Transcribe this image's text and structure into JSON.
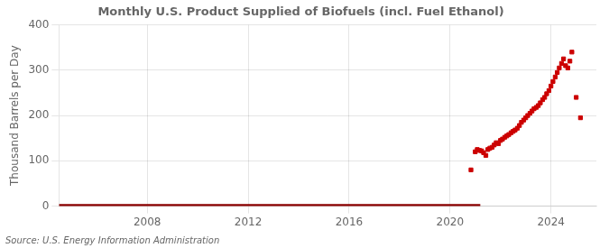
{
  "chart_data": {
    "type": "scatter",
    "title": "Monthly U.S. Product Supplied of Biofuels (incl. Fuel Ethanol)",
    "ylabel": "Thousand Barrels per Day",
    "source": "Source: U.S. Energy Information Administration",
    "xlim": [
      2004.5,
      2025.8
    ],
    "xticks": [
      2008,
      2012,
      2016,
      2020,
      2024
    ],
    "ylim": [
      0,
      400
    ],
    "yticks": [
      0,
      100,
      200,
      300,
      400
    ],
    "grid": true,
    "series": [
      {
        "type": "line",
        "color": "#8b0000",
        "x": [
          2004.5,
          2021.2
        ],
        "values": [
          1.5,
          1.5
        ]
      },
      {
        "type": "scatter",
        "color": "#cc0000",
        "marker": "square",
        "x": [
          2020.83,
          2021.0,
          2021.08,
          2021.17,
          2021.25,
          2021.33,
          2021.42,
          2021.5,
          2021.58,
          2021.67,
          2021.75,
          2021.83,
          2021.92,
          2022.0,
          2022.08,
          2022.17,
          2022.25,
          2022.33,
          2022.42,
          2022.5,
          2022.58,
          2022.67,
          2022.75,
          2022.83,
          2022.92,
          2023.0,
          2023.08,
          2023.17,
          2023.25,
          2023.33,
          2023.42,
          2023.5,
          2023.58,
          2023.67,
          2023.75,
          2023.83,
          2023.92,
          2024.0,
          2024.08,
          2024.17,
          2024.25,
          2024.33,
          2024.42,
          2024.5,
          2024.58,
          2024.67,
          2024.75,
          2024.83,
          2025.0,
          2025.17
        ],
        "values": [
          80,
          120,
          125,
          123,
          122,
          118,
          112,
          125,
          128,
          130,
          135,
          140,
          138,
          145,
          148,
          152,
          155,
          158,
          162,
          165,
          168,
          172,
          178,
          185,
          190,
          195,
          200,
          205,
          210,
          215,
          218,
          222,
          228,
          235,
          240,
          248,
          255,
          265,
          275,
          285,
          295,
          305,
          315,
          325,
          310,
          305,
          320,
          340,
          240,
          195
        ]
      }
    ]
  }
}
